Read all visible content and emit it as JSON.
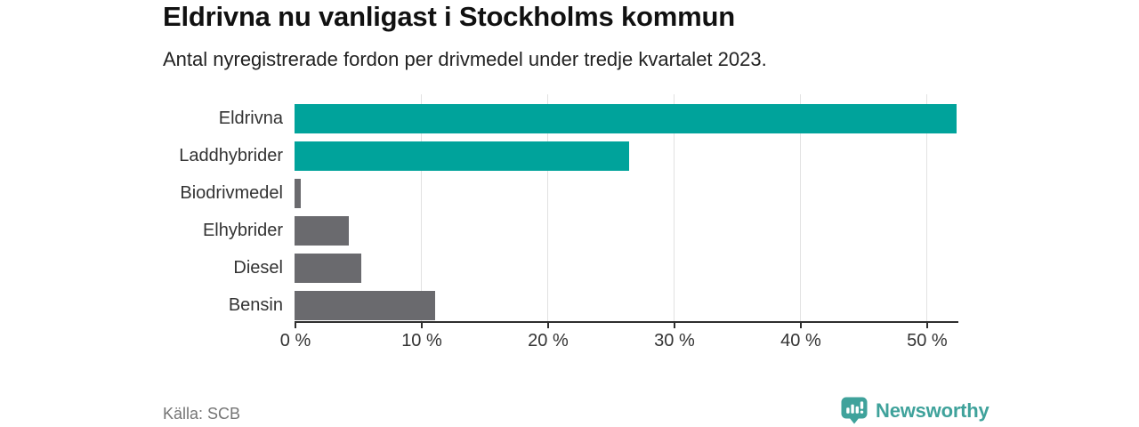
{
  "page": {
    "title": "Eldrivna nu vanligast i Stockholms kommun",
    "subtitle": "Antal nyregistrerade fordon per drivmedel under tredje kvartalet 2023.",
    "source": "Källa: SCB",
    "brand": "Newsworthy"
  },
  "colors": {
    "accent_teal": "#00a39b",
    "bar_gray": "#6a6a6e",
    "logo_teal": "#3fa29b",
    "gridline": "#e2e2e2",
    "axis": "#2e2e2e",
    "text_dark": "#111111",
    "text_body": "#333333",
    "text_muted": "#757575"
  },
  "chart_data": {
    "type": "bar",
    "orientation": "horizontal",
    "title": "Eldrivna nu vanligast i Stockholms kommun",
    "subtitle": "Antal nyregistrerade fordon per drivmedel under tredje kvartalet 2023.",
    "categories": [
      "Eldrivna",
      "Laddhybrider",
      "Biodrivmedel",
      "Elhybrider",
      "Diesel",
      "Bensin"
    ],
    "values": [
      52.4,
      26.5,
      0.5,
      4.3,
      5.3,
      11.1
    ],
    "unit": "%",
    "bar_colors": [
      "#00a39b",
      "#00a39b",
      "#6a6a6e",
      "#6a6a6e",
      "#6a6a6e",
      "#6a6a6e"
    ],
    "xlabel": "",
    "ylabel": "",
    "xlim": [
      0,
      52.4
    ],
    "xticks": [
      0,
      10,
      20,
      30,
      40,
      50
    ],
    "xtick_labels": [
      "0 %",
      "10 %",
      "20 %",
      "30 %",
      "40 %",
      "50 %"
    ],
    "grid": "vertical",
    "legend": "none",
    "value_labels": "none"
  }
}
